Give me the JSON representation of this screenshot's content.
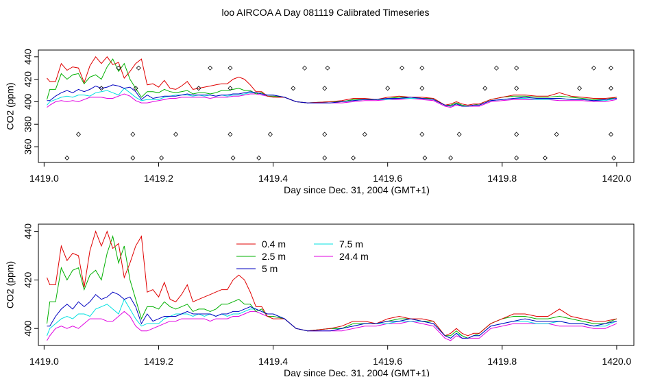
{
  "title": "loo AIRCOA A  Day 081119  Calibrated Timeseries",
  "colors": {
    "0.4": "#e00000",
    "2.5": "#00b000",
    "5": "#0000c0",
    "7.5": "#00e0e0",
    "24.4": "#e000e0"
  },
  "chart_data": [
    {
      "type": "line",
      "xlabel": "Day since Dec. 31, 2004 (GMT+1)",
      "ylabel": "CO2 (ppm)",
      "xlim": [
        1418.99,
        1420.03
      ],
      "ylim": [
        346,
        446
      ],
      "xticks": [
        "1419.0",
        "1419.2",
        "1419.4",
        "1419.6",
        "1419.8",
        "1420.0"
      ],
      "yticks": [
        "360",
        "380",
        "400",
        "420",
        "440"
      ],
      "grid": false,
      "series": [
        {
          "name": "0.4 m",
          "color": "#e00000",
          "x": [
            1419.005,
            1419.01,
            1419.02,
            1419.03,
            1419.04,
            1419.05,
            1419.06,
            1419.07,
            1419.08,
            1419.09,
            1419.1,
            1419.11,
            1419.12,
            1419.13,
            1419.14,
            1419.15,
            1419.16,
            1419.17,
            1419.18,
            1419.19,
            1419.2,
            1419.21,
            1419.22,
            1419.23,
            1419.24,
            1419.25,
            1419.26,
            1419.27,
            1419.28,
            1419.29,
            1419.3,
            1419.31,
            1419.32,
            1419.33,
            1419.34,
            1419.35,
            1419.36,
            1419.37,
            1419.38,
            1419.39,
            1419.4,
            1419.42,
            1419.44,
            1419.46,
            1419.5,
            1419.52,
            1419.54,
            1419.56,
            1419.58,
            1419.6,
            1419.62,
            1419.64,
            1419.66,
            1419.68,
            1419.7,
            1419.71,
            1419.72,
            1419.73,
            1419.74,
            1419.75,
            1419.76,
            1419.78,
            1419.8,
            1419.82,
            1419.84,
            1419.86,
            1419.88,
            1419.9,
            1419.92,
            1419.94,
            1419.96,
            1419.98,
            1420.0
          ],
          "y": [
            421,
            418,
            418,
            434,
            428,
            431,
            430,
            417,
            432,
            440,
            434,
            440,
            433,
            435,
            421,
            427,
            434,
            438,
            415,
            416,
            413,
            419,
            412,
            411,
            414,
            418,
            411,
            412,
            413,
            414,
            415,
            416,
            416,
            420,
            422,
            420,
            415,
            409,
            409,
            405,
            404,
            404,
            400,
            399,
            400,
            401,
            403,
            403,
            402,
            404,
            405,
            404,
            404,
            403,
            397,
            398,
            400,
            398,
            397,
            398,
            398,
            402,
            404,
            406,
            406,
            405,
            405,
            408,
            405,
            404,
            403,
            403,
            404
          ]
        },
        {
          "name": "2.5 m",
          "color": "#00b000",
          "x": [
            1419.005,
            1419.01,
            1419.02,
            1419.03,
            1419.04,
            1419.05,
            1419.06,
            1419.07,
            1419.08,
            1419.09,
            1419.1,
            1419.11,
            1419.12,
            1419.13,
            1419.14,
            1419.15,
            1419.16,
            1419.17,
            1419.18,
            1419.19,
            1419.2,
            1419.21,
            1419.22,
            1419.23,
            1419.24,
            1419.25,
            1419.26,
            1419.27,
            1419.28,
            1419.29,
            1419.3,
            1419.31,
            1419.32,
            1419.33,
            1419.34,
            1419.35,
            1419.36,
            1419.37,
            1419.38,
            1419.39,
            1419.4,
            1419.42,
            1419.44,
            1419.46,
            1419.5,
            1419.52,
            1419.54,
            1419.56,
            1419.58,
            1419.6,
            1419.62,
            1419.64,
            1419.66,
            1419.68,
            1419.7,
            1419.71,
            1419.72,
            1419.73,
            1419.74,
            1419.75,
            1419.76,
            1419.78,
            1419.8,
            1419.82,
            1419.84,
            1419.86,
            1419.88,
            1419.9,
            1419.92,
            1419.94,
            1419.96,
            1419.98,
            1420.0
          ],
          "y": [
            402,
            411,
            411,
            425,
            420,
            424,
            425,
            416,
            422,
            424,
            420,
            431,
            438,
            427,
            434,
            420,
            412,
            404,
            409,
            409,
            408,
            411,
            409,
            408,
            409,
            410,
            407,
            408,
            408,
            407,
            408,
            410,
            410,
            411,
            412,
            410,
            410,
            407,
            408,
            405,
            405,
            404,
            400,
            399,
            400,
            400,
            402,
            402,
            402,
            403,
            404,
            404,
            403,
            403,
            397,
            397,
            399,
            397,
            396,
            397,
            398,
            402,
            404,
            405,
            405,
            404,
            404,
            405,
            404,
            403,
            402,
            402,
            404
          ]
        },
        {
          "name": "5 m",
          "color": "#0000c0",
          "x": [
            1419.005,
            1419.01,
            1419.02,
            1419.03,
            1419.04,
            1419.05,
            1419.06,
            1419.07,
            1419.08,
            1419.09,
            1419.1,
            1419.11,
            1419.12,
            1419.13,
            1419.14,
            1419.15,
            1419.16,
            1419.17,
            1419.18,
            1419.19,
            1419.2,
            1419.21,
            1419.22,
            1419.23,
            1419.24,
            1419.25,
            1419.26,
            1419.27,
            1419.28,
            1419.29,
            1419.3,
            1419.31,
            1419.32,
            1419.33,
            1419.34,
            1419.35,
            1419.36,
            1419.37,
            1419.38,
            1419.39,
            1419.4,
            1419.42,
            1419.44,
            1419.46,
            1419.5,
            1419.52,
            1419.54,
            1419.56,
            1419.58,
            1419.6,
            1419.62,
            1419.64,
            1419.66,
            1419.68,
            1419.7,
            1419.71,
            1419.72,
            1419.73,
            1419.74,
            1419.75,
            1419.76,
            1419.78,
            1419.8,
            1419.82,
            1419.84,
            1419.86,
            1419.88,
            1419.9,
            1419.92,
            1419.94,
            1419.96,
            1419.98,
            1420.0
          ],
          "y": [
            401,
            401,
            405,
            408,
            410,
            408,
            411,
            409,
            411,
            414,
            412,
            413,
            415,
            414,
            412,
            413,
            409,
            402,
            406,
            403,
            404,
            405,
            405,
            405,
            406,
            407,
            406,
            406,
            406,
            406,
            405,
            406,
            406,
            407,
            407,
            408,
            409,
            408,
            407,
            406,
            406,
            404,
            400,
            399,
            399,
            400,
            401,
            402,
            402,
            403,
            403,
            404,
            403,
            402,
            397,
            396,
            398,
            396,
            396,
            397,
            397,
            401,
            402,
            403,
            404,
            403,
            403,
            403,
            402,
            402,
            401,
            402,
            403
          ]
        },
        {
          "name": "7.5 m",
          "color": "#00e0e0",
          "x": [
            1419.005,
            1419.01,
            1419.02,
            1419.03,
            1419.04,
            1419.05,
            1419.06,
            1419.07,
            1419.08,
            1419.09,
            1419.1,
            1419.11,
            1419.12,
            1419.13,
            1419.14,
            1419.15,
            1419.16,
            1419.17,
            1419.18,
            1419.19,
            1419.2,
            1419.21,
            1419.22,
            1419.23,
            1419.24,
            1419.25,
            1419.26,
            1419.27,
            1419.28,
            1419.29,
            1419.3,
            1419.31,
            1419.32,
            1419.33,
            1419.34,
            1419.35,
            1419.36,
            1419.37,
            1419.38,
            1419.39,
            1419.4,
            1419.42,
            1419.44,
            1419.46,
            1419.5,
            1419.52,
            1419.54,
            1419.56,
            1419.58,
            1419.6,
            1419.62,
            1419.64,
            1419.66,
            1419.68,
            1419.7,
            1419.71,
            1419.72,
            1419.73,
            1419.74,
            1419.75,
            1419.76,
            1419.78,
            1419.8,
            1419.82,
            1419.84,
            1419.86,
            1419.88,
            1419.9,
            1419.92,
            1419.94,
            1419.96,
            1419.98,
            1420.0
          ],
          "y": [
            397,
            400,
            402,
            404,
            405,
            404,
            406,
            406,
            405,
            408,
            409,
            410,
            408,
            406,
            412,
            408,
            404,
            401,
            402,
            402,
            402,
            404,
            405,
            406,
            406,
            406,
            405,
            406,
            405,
            406,
            405,
            406,
            405,
            406,
            406,
            407,
            408,
            408,
            407,
            406,
            406,
            404,
            400,
            399,
            400,
            400,
            401,
            402,
            402,
            402,
            403,
            403,
            403,
            402,
            397,
            396,
            398,
            397,
            396,
            397,
            397,
            401,
            402,
            403,
            403,
            402,
            402,
            403,
            402,
            402,
            401,
            401,
            403
          ]
        },
        {
          "name": "24.4 m",
          "color": "#e000e0",
          "x": [
            1419.005,
            1419.01,
            1419.02,
            1419.03,
            1419.04,
            1419.05,
            1419.06,
            1419.07,
            1419.08,
            1419.09,
            1419.1,
            1419.11,
            1419.12,
            1419.13,
            1419.14,
            1419.15,
            1419.16,
            1419.17,
            1419.18,
            1419.19,
            1419.2,
            1419.21,
            1419.22,
            1419.23,
            1419.24,
            1419.25,
            1419.26,
            1419.27,
            1419.28,
            1419.29,
            1419.3,
            1419.31,
            1419.32,
            1419.33,
            1419.34,
            1419.35,
            1419.36,
            1419.37,
            1419.38,
            1419.39,
            1419.4,
            1419.42,
            1419.44,
            1419.46,
            1419.5,
            1419.52,
            1419.54,
            1419.56,
            1419.58,
            1419.6,
            1419.62,
            1419.64,
            1419.66,
            1419.68,
            1419.7,
            1419.71,
            1419.72,
            1419.73,
            1419.74,
            1419.75,
            1419.76,
            1419.78,
            1419.8,
            1419.82,
            1419.84,
            1419.86,
            1419.88,
            1419.9,
            1419.92,
            1419.94,
            1419.96,
            1419.98,
            1420.0
          ],
          "y": [
            395,
            397,
            400,
            401,
            400,
            401,
            400,
            402,
            404,
            404,
            404,
            403,
            403,
            405,
            407,
            405,
            401,
            399,
            399,
            400,
            401,
            402,
            403,
            403,
            404,
            404,
            404,
            404,
            404,
            403,
            404,
            404,
            404,
            405,
            405,
            406,
            407,
            407,
            406,
            405,
            405,
            404,
            400,
            399,
            399,
            399,
            400,
            401,
            401,
            402,
            402,
            403,
            402,
            401,
            396,
            395,
            397,
            396,
            396,
            396,
            396,
            400,
            401,
            402,
            402,
            402,
            402,
            401,
            401,
            401,
            400,
            400,
            402
          ]
        }
      ],
      "status_points": {
        "x": [
          1419.13,
          1419.165,
          1419.29,
          1419.325,
          1419.455,
          1419.495,
          1419.625,
          1419.66,
          1419.79,
          1419.825,
          1419.96,
          1419.99,
          1419.1,
          1419.16,
          1419.27,
          1419.325,
          1419.435,
          1419.49,
          1419.6,
          1419.66,
          1419.77,
          1419.825,
          1419.935,
          1419.99,
          1419.06,
          1419.155,
          1419.23,
          1419.325,
          1419.395,
          1419.49,
          1419.56,
          1419.66,
          1419.725,
          1419.825,
          1419.895,
          1419.99,
          1419.04,
          1419.155,
          1419.205,
          1419.33,
          1419.375,
          1419.49,
          1419.54,
          1419.665,
          1419.71,
          1419.825,
          1419.875,
          1419.995
        ],
        "y": [
          430,
          430,
          430,
          430,
          430,
          430,
          430,
          430,
          430,
          430,
          430,
          430,
          412,
          412,
          412,
          412,
          412,
          412,
          412,
          412,
          412,
          412,
          412,
          412,
          371,
          371,
          371,
          371,
          371,
          371,
          371,
          371,
          371,
          371,
          371,
          371,
          350,
          350,
          350,
          350,
          350,
          350,
          350,
          350,
          350,
          350,
          350,
          350
        ]
      }
    },
    {
      "type": "line",
      "xlabel": "Day since Dec. 31, 2004 (GMT+1)",
      "ylabel": "CO2 (ppm)",
      "xlim": [
        1418.99,
        1420.03
      ],
      "ylim": [
        393,
        443
      ],
      "xticks": [
        "1419.0",
        "1419.2",
        "1419.4",
        "1419.6",
        "1419.8",
        "1420.0"
      ],
      "yticks": [
        "400",
        "420",
        "440"
      ],
      "grid": false,
      "legend": {
        "position": "top-center",
        "entries": [
          "0.4 m",
          "2.5 m",
          "5 m",
          "7.5 m",
          "24.4 m"
        ]
      },
      "series_ref": "same as first panel"
    }
  ]
}
